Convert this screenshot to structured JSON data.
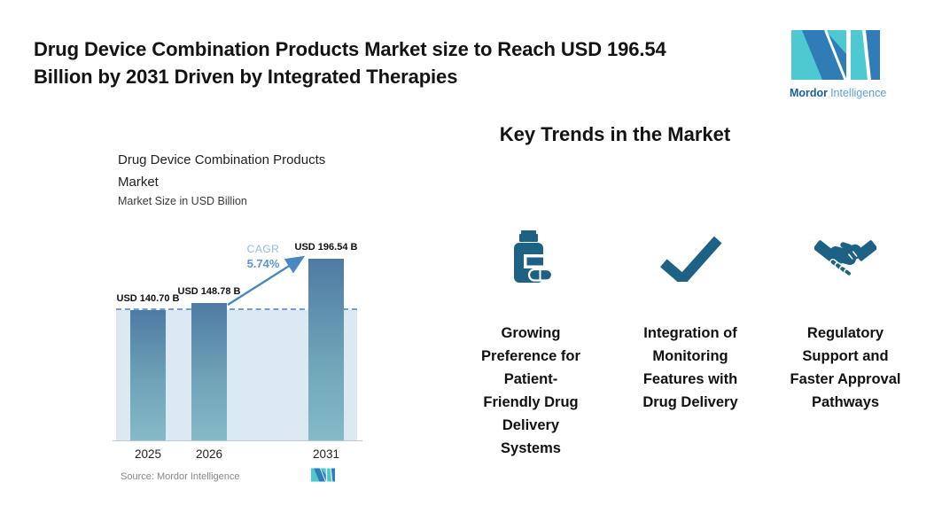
{
  "header": {
    "title": "Drug Device Combination Products Market size to Reach USD 196.54 Billion by 2031 Driven by Integrated Therapies",
    "title_lines": [
      "Drug Device Combination Products Market size to Reach USD 196.54",
      "Billion by 2031 Driven by Integrated Therapies"
    ]
  },
  "brand": {
    "name_bold": "Mordor",
    "name_light": "Intelligence"
  },
  "chart_data": {
    "type": "bar",
    "title": "Drug Device Combination Products Market",
    "subtitle": "Market Size in USD Billion",
    "unit": "USD Billion",
    "categories": [
      "2025",
      "2026",
      "2031"
    ],
    "values": [
      140.7,
      148.78,
      196.54
    ],
    "value_labels": [
      "USD 140.70 B",
      "USD 148.78 B",
      "USD 196.54 B"
    ],
    "cagr_label": "CAGR",
    "cagr_value": "5.74%",
    "reference_line_value": 140.7,
    "reference_line_style": "dashed",
    "ylim": [
      0,
      210
    ],
    "grid": false,
    "legend": "none",
    "source": "Source: Mordor Intelligence"
  },
  "trends": {
    "heading": "Key Trends in the Market",
    "items": [
      {
        "icon": "pill-bottle-icon",
        "label": "Growing Preference for Patient-Friendly Drug Delivery Systems",
        "lines": [
          "Growing",
          "Preference for",
          "Patient-",
          "Friendly Drug",
          "Delivery",
          "Systems"
        ]
      },
      {
        "icon": "checkmark-icon",
        "label": "Integration of Monitoring Features with Drug Delivery",
        "lines": [
          "Integration of",
          "Monitoring",
          "Features with",
          "Drug Delivery"
        ]
      },
      {
        "icon": "handshake-icon",
        "label": "Regulatory Support and Faster Approval Pathways",
        "lines": [
          "Regulatory",
          "Support and",
          "Faster Approval",
          "Pathways"
        ]
      }
    ]
  },
  "colors": {
    "icon_accent": "#1d6285",
    "logo_teal": "#4ec9d2",
    "logo_blue": "#2f7cb6",
    "brand_text_bold": "#1b5c9b",
    "brand_text_light": "#5f9fd4",
    "bar_gradient_top": "#4e7ba3",
    "bar_gradient_bottom": "#85bac8",
    "plot_band": "#dce8f2",
    "dashed_reference": "#6ca0d4",
    "cagr_word": "#93b9dd",
    "cagr_value": "#5e95ca",
    "arrow": "#4788c0",
    "title_text": "#131313",
    "source_text": "#868686"
  }
}
